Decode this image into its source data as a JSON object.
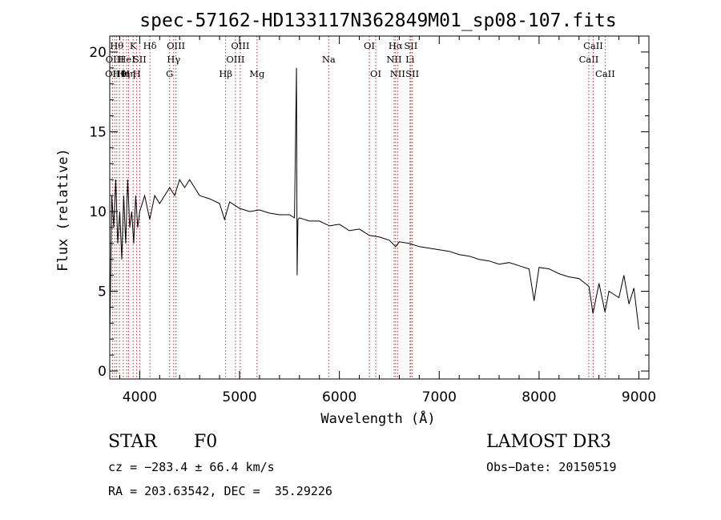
{
  "chart_data": {
    "type": "line",
    "title": "spec-57162-HD133117N362849M01_sp08-107.fits",
    "xlabel": "Wavelength (Å)",
    "ylabel": "Flux (relative)",
    "xlim": [
      3700,
      9100
    ],
    "ylim": [
      -0.5,
      21
    ],
    "xticks": [
      4000,
      5000,
      6000,
      7000,
      8000,
      9000
    ],
    "yticks": [
      0,
      5,
      10,
      15,
      20
    ],
    "series": [
      {
        "name": "flux",
        "x": [
          3700,
          3720,
          3740,
          3760,
          3780,
          3800,
          3820,
          3840,
          3860,
          3880,
          3900,
          3920,
          3940,
          3960,
          3980,
          4000,
          4050,
          4100,
          4150,
          4200,
          4250,
          4300,
          4350,
          4400,
          4450,
          4500,
          4550,
          4600,
          4700,
          4800,
          4850,
          4900,
          5000,
          5100,
          5200,
          5300,
          5400,
          5500,
          5550,
          5570,
          5577,
          5585,
          5600,
          5700,
          5800,
          5900,
          6000,
          6100,
          6200,
          6300,
          6400,
          6500,
          6563,
          6600,
          6700,
          6800,
          6900,
          7000,
          7100,
          7200,
          7300,
          7400,
          7500,
          7600,
          7700,
          7800,
          7900,
          7950,
          8000,
          8100,
          8200,
          8300,
          8400,
          8500,
          8540,
          8600,
          8660,
          8700,
          8800,
          8850,
          8900,
          8950,
          9000
        ],
        "y": [
          2,
          11,
          9,
          12,
          8,
          10,
          7,
          11,
          8,
          12,
          9,
          10,
          8,
          11,
          9,
          10,
          11,
          9.5,
          11,
          10.5,
          11,
          11.5,
          11,
          12,
          11.5,
          12,
          11.5,
          11,
          10.8,
          10.5,
          9.5,
          10.6,
          10.2,
          10,
          10.1,
          9.9,
          9.8,
          9.8,
          9.6,
          19,
          6,
          9.5,
          9.6,
          9.4,
          9.4,
          9.1,
          9.2,
          8.8,
          8.9,
          8.5,
          8.4,
          8.2,
          7.8,
          8.1,
          8.0,
          7.8,
          7.7,
          7.6,
          7.5,
          7.3,
          7.2,
          7.0,
          6.9,
          6.7,
          6.8,
          6.6,
          6.4,
          4.4,
          6.5,
          6.4,
          6.1,
          5.9,
          5.8,
          5.3,
          3.6,
          5.5,
          3.7,
          5.0,
          4.6,
          6.0,
          4.2,
          5.2,
          2.6
        ]
      }
    ],
    "lines": [
      {
        "w": 3727,
        "lab": "OII",
        "row": 3
      },
      {
        "w": 3750,
        "lab": "OIII",
        "row": 2
      },
      {
        "w": 3770,
        "lab": "Hθ",
        "row": 1
      },
      {
        "w": 3797,
        "lab": "Hθ",
        "row": 3
      },
      {
        "w": 3835,
        "lab": "Hη",
        "row": 3
      },
      {
        "w": 3869,
        "lab": "HeI",
        "row": 2
      },
      {
        "w": 3889,
        "lab": "Hη",
        "row": 3
      },
      {
        "w": 3934,
        "lab": "K",
        "row": 1
      },
      {
        "w": 3970,
        "lab": "H",
        "row": 3
      },
      {
        "w": 4000,
        "lab": "SII",
        "row": 2
      },
      {
        "w": 4102,
        "lab": "Hδ",
        "row": 1
      },
      {
        "w": 4300,
        "lab": "G",
        "row": 3
      },
      {
        "w": 4340,
        "lab": "Hγ",
        "row": 2
      },
      {
        "w": 4363,
        "lab": "OIII",
        "row": 1
      },
      {
        "w": 4861,
        "lab": "Hβ",
        "row": 3
      },
      {
        "w": 4959,
        "lab": "OIII",
        "row": 2
      },
      {
        "w": 5007,
        "lab": "OIII",
        "row": 1
      },
      {
        "w": 5175,
        "lab": "Mg",
        "row": 3
      },
      {
        "w": 5893,
        "lab": "Na",
        "row": 2
      },
      {
        "w": 6300,
        "lab": "OI",
        "row": 1
      },
      {
        "w": 6364,
        "lab": "OI",
        "row": 3
      },
      {
        "w": 6548,
        "lab": "NII",
        "row": 2
      },
      {
        "w": 6563,
        "lab": "Hα",
        "row": 1
      },
      {
        "w": 6583,
        "lab": "NII",
        "row": 3
      },
      {
        "w": 6707,
        "lab": "Li",
        "row": 2
      },
      {
        "w": 6716,
        "lab": "SII",
        "row": 1
      },
      {
        "w": 6731,
        "lab": "SII",
        "row": 3
      },
      {
        "w": 8498,
        "lab": "CaII",
        "row": 2
      },
      {
        "w": 8542,
        "lab": "CaII",
        "row": 1
      },
      {
        "w": 8662,
        "lab": "CaII",
        "row": 3
      }
    ]
  },
  "info": {
    "class": "STAR",
    "subclass": "F0",
    "survey": "LAMOST DR3",
    "cz": "cz = −283.4 ± 66.4 km/s",
    "obsdate": "Obs−Date: 20150519",
    "radec": "RA = 203.63542, DEC =  35.29226"
  }
}
